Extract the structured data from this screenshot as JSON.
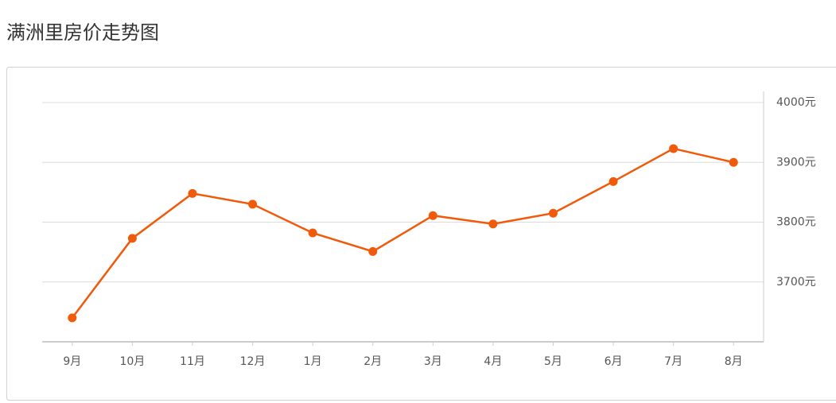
{
  "chart_data": {
    "type": "line",
    "title": "满洲里房价走势图",
    "categories": [
      "9月",
      "10月",
      "11月",
      "12月",
      "1月",
      "2月",
      "3月",
      "4月",
      "5月",
      "6月",
      "7月",
      "8月"
    ],
    "series": [
      {
        "color": "#f05a0a",
        "values": [
          3640,
          3773,
          3848,
          3830,
          3782,
          3751,
          3811,
          3797,
          3815,
          3868,
          3923,
          3900
        ]
      }
    ],
    "ylim": [
      3600,
      4000
    ],
    "yticks": [
      {
        "value": 3700,
        "label": "3700元"
      },
      {
        "value": 3800,
        "label": "3800元"
      },
      {
        "value": 3900,
        "label": "3900元"
      },
      {
        "value": 4000,
        "label": "4000元"
      }
    ],
    "grid": true
  }
}
